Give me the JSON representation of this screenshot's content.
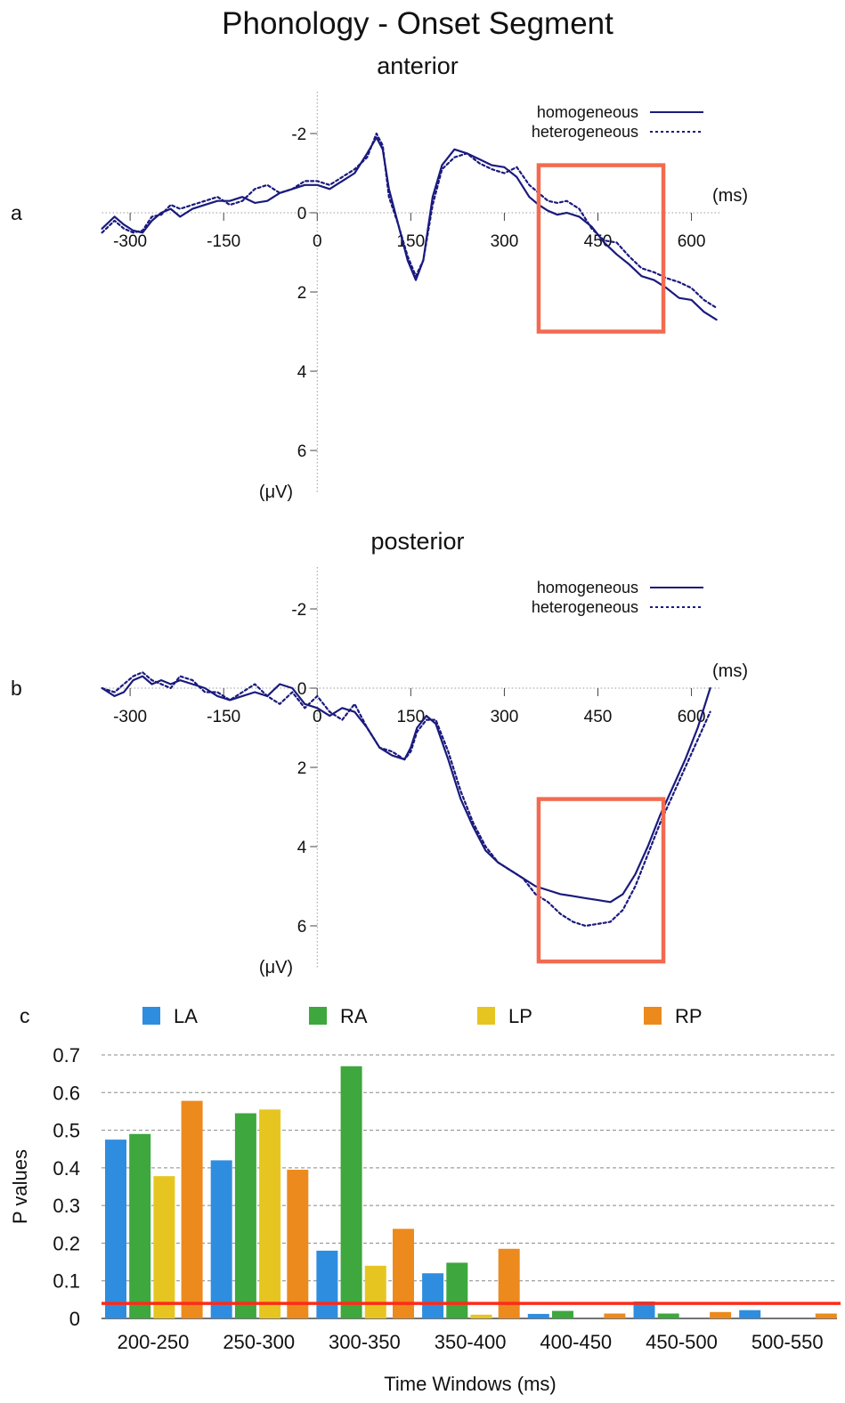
{
  "figure_title": "Phonology - Onset Segment",
  "chart_data": [
    {
      "type": "line",
      "panel_label": "a",
      "title": "anterior",
      "xlabel": "(ms)",
      "ylabel": "(μV)",
      "xlim": [
        -345,
        645
      ],
      "ylim": [
        -3,
        7
      ],
      "y_inverted": true,
      "xticks": [
        -300,
        -150,
        0,
        150,
        300,
        450,
        600
      ],
      "yticks": [
        -2,
        0,
        2,
        4,
        6
      ],
      "legend_position": "top-right",
      "highlight_box": {
        "x": [
          355,
          555
        ],
        "y": [
          -1.2,
          3.0
        ],
        "color": "#f26b50"
      },
      "series": [
        {
          "name": "homogeneous",
          "style": "solid",
          "color": "#1a1a7e",
          "x": [
            -345,
            -325,
            -310,
            -295,
            -280,
            -265,
            -250,
            -235,
            -220,
            -200,
            -180,
            -160,
            -140,
            -120,
            -100,
            -80,
            -60,
            -40,
            -20,
            0,
            20,
            40,
            60,
            80,
            95,
            105,
            115,
            130,
            145,
            158,
            170,
            185,
            200,
            220,
            240,
            260,
            280,
            300,
            320,
            340,
            355,
            370,
            385,
            400,
            420,
            440,
            460,
            480,
            500,
            520,
            540,
            560,
            580,
            600,
            620,
            640
          ],
          "y": [
            0.4,
            0.1,
            0.3,
            0.45,
            0.5,
            0.2,
            0.0,
            -0.1,
            0.1,
            -0.1,
            -0.2,
            -0.3,
            -0.3,
            -0.4,
            -0.25,
            -0.3,
            -0.5,
            -0.6,
            -0.7,
            -0.7,
            -0.6,
            -0.8,
            -1.0,
            -1.5,
            -1.9,
            -1.6,
            -0.6,
            0.3,
            1.2,
            1.7,
            1.2,
            -0.4,
            -1.2,
            -1.6,
            -1.5,
            -1.35,
            -1.2,
            -1.15,
            -0.9,
            -0.4,
            -0.2,
            -0.05,
            0.05,
            0.0,
            0.1,
            0.35,
            0.75,
            1.05,
            1.3,
            1.6,
            1.7,
            1.9,
            2.15,
            2.2,
            2.5,
            2.7
          ]
        },
        {
          "name": "heterogeneous",
          "style": "dotted",
          "color": "#1a1a7e",
          "x": [
            -345,
            -325,
            -310,
            -295,
            -280,
            -265,
            -250,
            -235,
            -220,
            -200,
            -180,
            -160,
            -140,
            -120,
            -100,
            -80,
            -60,
            -40,
            -20,
            0,
            20,
            40,
            60,
            80,
            95,
            105,
            115,
            130,
            145,
            158,
            170,
            185,
            200,
            220,
            240,
            260,
            280,
            300,
            320,
            340,
            355,
            370,
            385,
            400,
            420,
            440,
            460,
            480,
            500,
            520,
            540,
            560,
            580,
            600,
            620,
            640
          ],
          "y": [
            0.5,
            0.2,
            0.4,
            0.5,
            0.45,
            0.1,
            0.05,
            -0.2,
            -0.1,
            -0.2,
            -0.3,
            -0.4,
            -0.2,
            -0.3,
            -0.6,
            -0.7,
            -0.5,
            -0.6,
            -0.8,
            -0.8,
            -0.7,
            -0.9,
            -1.1,
            -1.4,
            -2.0,
            -1.7,
            -0.4,
            0.3,
            1.1,
            1.6,
            1.2,
            -0.2,
            -1.1,
            -1.4,
            -1.5,
            -1.25,
            -1.1,
            -1.0,
            -1.15,
            -0.7,
            -0.5,
            -0.3,
            -0.25,
            -0.3,
            -0.1,
            0.4,
            0.7,
            0.75,
            1.1,
            1.4,
            1.5,
            1.65,
            1.75,
            1.9,
            2.2,
            2.4
          ]
        }
      ]
    },
    {
      "type": "line",
      "panel_label": "b",
      "title": "posterior",
      "xlabel": "(ms)",
      "ylabel": "(μV)",
      "xlim": [
        -345,
        645
      ],
      "ylim": [
        -3,
        7
      ],
      "y_inverted": true,
      "xticks": [
        -300,
        -150,
        0,
        150,
        300,
        450,
        600
      ],
      "yticks": [
        -2,
        0,
        2,
        4,
        6
      ],
      "legend_position": "top-right",
      "highlight_box": {
        "x": [
          355,
          555
        ],
        "y": [
          2.8,
          6.9
        ],
        "color": "#f26b50"
      },
      "series": [
        {
          "name": "homogeneous",
          "style": "solid",
          "color": "#1a1a7e",
          "x": [
            -345,
            -325,
            -310,
            -295,
            -280,
            -265,
            -250,
            -235,
            -220,
            -200,
            -180,
            -160,
            -140,
            -120,
            -100,
            -80,
            -60,
            -40,
            -20,
            0,
            20,
            40,
            60,
            80,
            100,
            120,
            140,
            150,
            160,
            175,
            190,
            210,
            230,
            250,
            270,
            290,
            310,
            330,
            350,
            370,
            390,
            410,
            430,
            450,
            470,
            490,
            510,
            530,
            550,
            570,
            590,
            610,
            630
          ],
          "y": [
            0.0,
            0.2,
            0.1,
            -0.2,
            -0.3,
            -0.1,
            -0.2,
            -0.1,
            -0.2,
            -0.1,
            0.0,
            0.2,
            0.3,
            0.2,
            0.1,
            0.2,
            -0.1,
            0.0,
            0.4,
            0.5,
            0.7,
            0.5,
            0.6,
            1.0,
            1.5,
            1.7,
            1.8,
            1.5,
            1.0,
            0.7,
            0.9,
            1.8,
            2.8,
            3.5,
            4.1,
            4.4,
            4.6,
            4.8,
            5.0,
            5.1,
            5.2,
            5.25,
            5.3,
            5.35,
            5.4,
            5.2,
            4.7,
            4.0,
            3.2,
            2.5,
            1.8,
            1.0,
            0.0
          ]
        },
        {
          "name": "heterogeneous",
          "style": "dotted",
          "color": "#1a1a7e",
          "x": [
            -345,
            -325,
            -310,
            -295,
            -280,
            -265,
            -250,
            -235,
            -220,
            -200,
            -180,
            -160,
            -140,
            -120,
            -100,
            -80,
            -60,
            -40,
            -20,
            0,
            20,
            40,
            60,
            80,
            100,
            120,
            140,
            150,
            160,
            175,
            190,
            210,
            230,
            250,
            270,
            290,
            310,
            330,
            350,
            370,
            390,
            410,
            430,
            450,
            470,
            490,
            510,
            530,
            550,
            570,
            590,
            610,
            630
          ],
          "y": [
            0.0,
            0.1,
            -0.1,
            -0.3,
            -0.4,
            -0.2,
            -0.1,
            0.0,
            -0.3,
            -0.2,
            0.1,
            0.1,
            0.3,
            0.1,
            -0.1,
            0.2,
            0.4,
            0.1,
            0.5,
            0.2,
            0.6,
            0.8,
            0.4,
            1.0,
            1.5,
            1.6,
            1.8,
            1.6,
            1.1,
            0.8,
            0.8,
            1.6,
            2.6,
            3.4,
            4.0,
            4.4,
            4.6,
            4.8,
            5.2,
            5.4,
            5.7,
            5.9,
            6.0,
            5.95,
            5.9,
            5.6,
            5.0,
            4.2,
            3.4,
            2.7,
            2.0,
            1.3,
            0.6
          ]
        }
      ]
    },
    {
      "type": "bar",
      "panel_label": "c",
      "xlabel": "Time Windows (ms)",
      "ylabel": "P values",
      "ylim": [
        0,
        0.7
      ],
      "yticks": [
        0,
        0.1,
        0.2,
        0.3,
        0.4,
        0.5,
        0.6,
        0.7
      ],
      "categories": [
        "200-250",
        "250-300",
        "300-350",
        "350-400",
        "400-450",
        "450-500",
        "500-550"
      ],
      "threshold": {
        "value": 0.04,
        "color": "#ff2a1a"
      },
      "grid": "horizontal-dashed",
      "legend_position": "top",
      "series": [
        {
          "name": "LA",
          "color": "#2f8de0",
          "values": [
            0.475,
            0.42,
            0.18,
            0.12,
            0.012,
            0.045,
            0.022
          ]
        },
        {
          "name": "RA",
          "color": "#3ea73e",
          "values": [
            0.49,
            0.545,
            0.67,
            0.148,
            0.02,
            0.013,
            0.0
          ]
        },
        {
          "name": "LP",
          "color": "#e7c521",
          "values": [
            0.378,
            0.555,
            0.14,
            0.01,
            0.0,
            0.0,
            0.0
          ]
        },
        {
          "name": "RP",
          "color": "#ec8a1e",
          "values": [
            0.578,
            0.395,
            0.238,
            0.185,
            0.013,
            0.017,
            0.013
          ]
        }
      ]
    }
  ]
}
